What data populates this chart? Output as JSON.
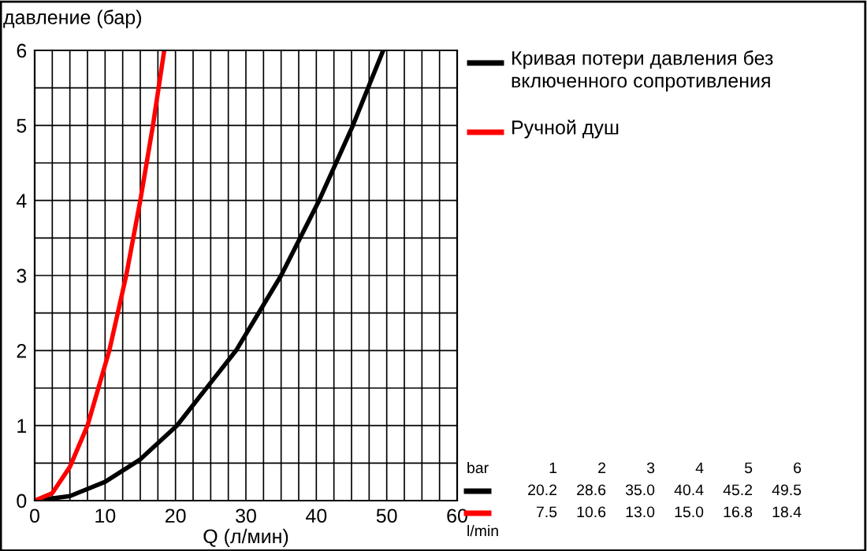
{
  "chart_data": {
    "type": "line",
    "xlabel": "Q (л/мин)",
    "ylabel": "давление (бар)",
    "xlim": [
      0,
      60
    ],
    "ylim": [
      0,
      6
    ],
    "xticks": [
      0,
      10,
      20,
      30,
      40,
      50,
      60
    ],
    "yticks": [
      0,
      1,
      2,
      3,
      4,
      5,
      6
    ],
    "grid": true,
    "legend": "top right",
    "annotations": [
      "bar",
      "1",
      "2",
      "3",
      "4",
      "5",
      "6",
      "20.2",
      "28.6",
      "35.0",
      "40.4",
      "45.2",
      "49.5",
      "7.5",
      "10.6",
      "13.0",
      "15.0",
      "16.8",
      "18.4",
      "l/min"
    ],
    "series": [
      {
        "name": "Кривая потери давления без включенного сопротивления",
        "color": "#000000",
        "x": [
          0,
          5,
          10,
          15,
          20.2,
          28.6,
          35.0,
          40.4,
          45.2,
          49.5
        ],
        "values": [
          0,
          0.06,
          0.25,
          0.55,
          1,
          2,
          3,
          4,
          5,
          6
        ]
      },
      {
        "name": "Ручной душ",
        "color": "#ff0000",
        "x": [
          0,
          2.5,
          5,
          7.5,
          10.6,
          13.0,
          15.0,
          16.8,
          18.4
        ],
        "values": [
          0,
          0.1,
          0.45,
          1,
          2,
          3,
          4,
          5,
          6
        ]
      }
    ]
  }
}
